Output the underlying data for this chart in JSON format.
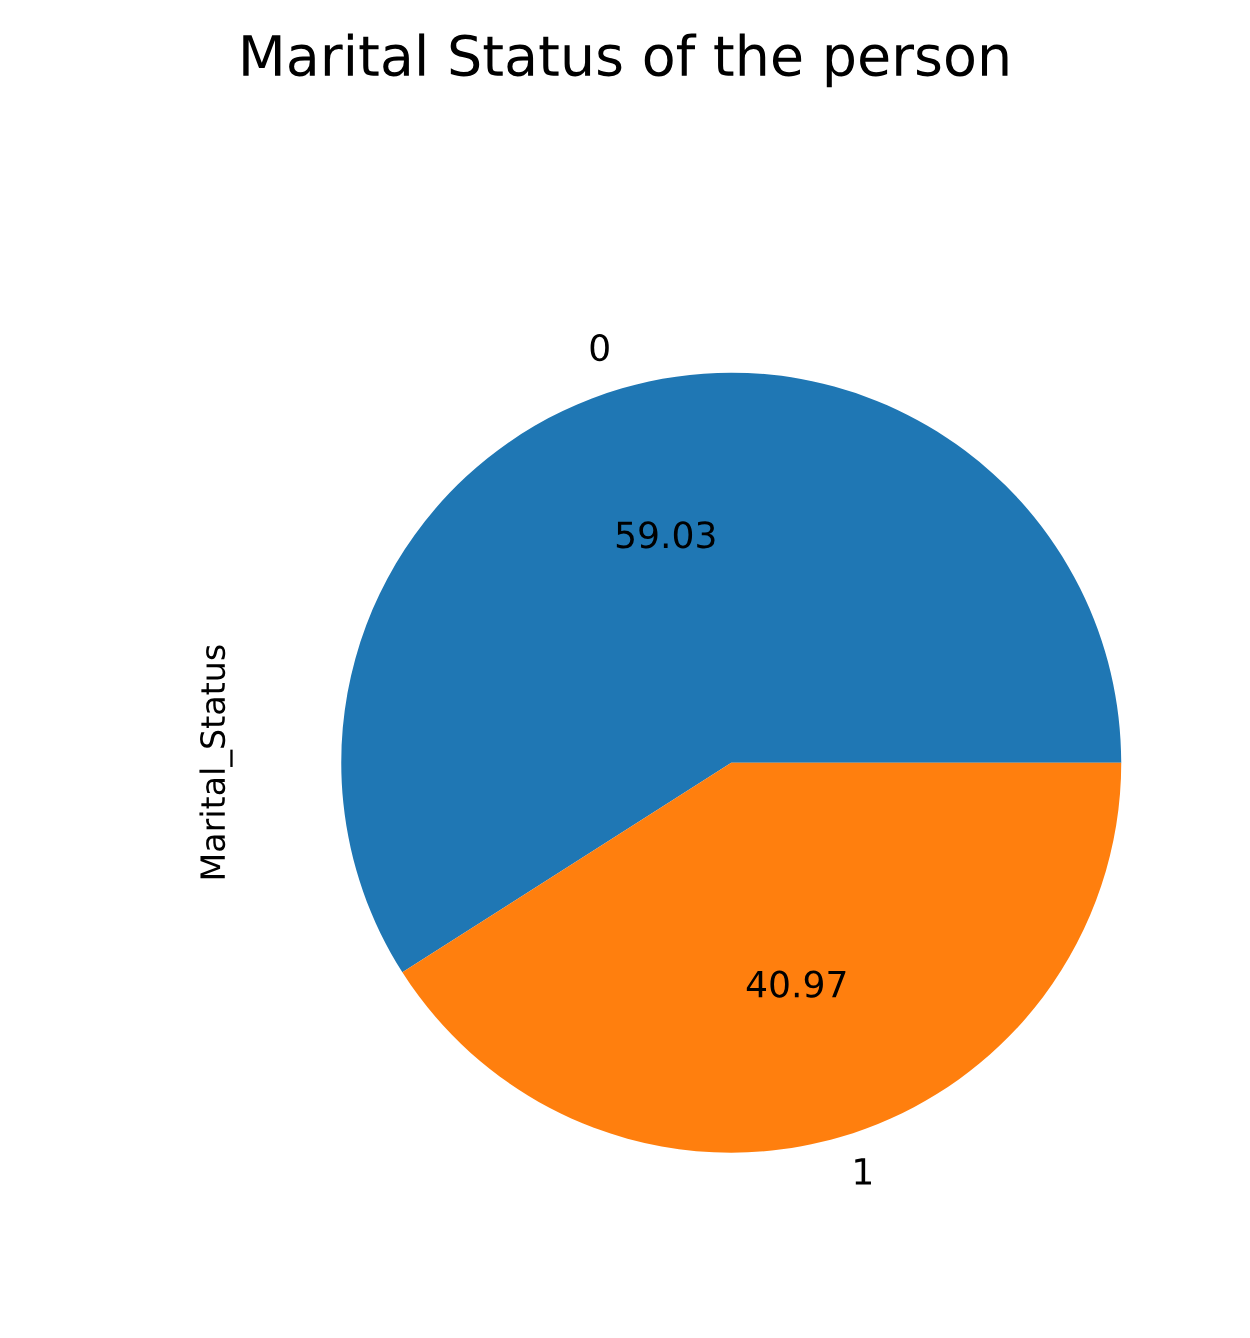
{
  "chart_data": {
    "type": "pie",
    "title": "Marital Status of the person",
    "ylabel": "Marital_Status",
    "categories": [
      "0",
      "1"
    ],
    "values": [
      59.03,
      40.97
    ],
    "colors": [
      "#1f77b4",
      "#ff7f0e"
    ],
    "data_labels": true,
    "legend": false
  }
}
